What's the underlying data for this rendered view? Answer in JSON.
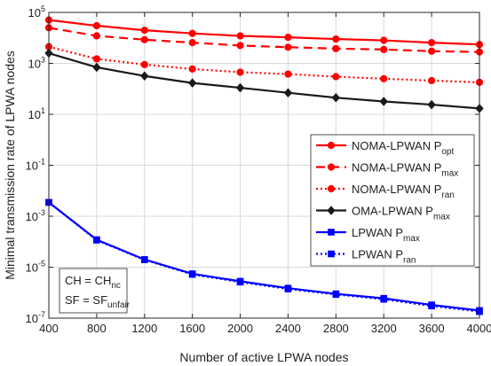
{
  "chart_data": {
    "type": "line",
    "xlabel": "Number of active LPWA nodes",
    "ylabel": "Minimal transmission rate of LPWA nodes",
    "x": [
      400,
      800,
      1200,
      1600,
      2000,
      2400,
      2800,
      3200,
      3600,
      4000
    ],
    "xlim": [
      400,
      4000
    ],
    "ylim": [
      1e-07,
      100000.0
    ],
    "yscale": "log",
    "grid": true,
    "legend_position": "right",
    "x_ticks": [
      "400",
      "800",
      "1200",
      "1600",
      "2000",
      "2400",
      "2800",
      "3200",
      "3600",
      "4000"
    ],
    "y_ticks": [
      {
        "value": 100000.0,
        "mantissa": "10",
        "exponent": "5"
      },
      {
        "value": 1000.0,
        "mantissa": "10",
        "exponent": "3"
      },
      {
        "value": 10,
        "mantissa": "10",
        "exponent": "1"
      },
      {
        "value": 0.1,
        "mantissa": "10",
        "exponent": "-1"
      },
      {
        "value": 0.001,
        "mantissa": "10",
        "exponent": "-3"
      },
      {
        "value": 1e-05,
        "mantissa": "10",
        "exponent": "-5"
      },
      {
        "value": 1e-07,
        "mantissa": "10",
        "exponent": "-7"
      }
    ],
    "series": [
      {
        "name": "NOMA-LPWAN P",
        "subscript": "opt",
        "color": "#ff0000",
        "dash": "solid",
        "marker": "circle",
        "values": [
          50000,
          30000,
          20000,
          15000,
          12000,
          10500,
          9000,
          8000,
          6500,
          5500
        ]
      },
      {
        "name": "NOMA-LPWAN P",
        "subscript": "max",
        "color": "#ff0000",
        "dash": "dashed",
        "marker": "circle",
        "values": [
          25000,
          12000,
          8500,
          6500,
          5000,
          4300,
          3800,
          3500,
          3000,
          2800
        ]
      },
      {
        "name": "NOMA-LPWAN P",
        "subscript": "ran",
        "color": "#ff0000",
        "dash": "dotted",
        "marker": "circle",
        "values": [
          4500,
          1500,
          900,
          600,
          450,
          380,
          300,
          250,
          210,
          180
        ]
      },
      {
        "name": "OMA-LPWAN P",
        "subscript": "max",
        "color": "#1a1a1a",
        "dash": "solid",
        "marker": "diamond",
        "values": [
          2500,
          700,
          320,
          170,
          110,
          70,
          45,
          32,
          24,
          17
        ]
      },
      {
        "name": "LPWAN P",
        "subscript": "max",
        "color": "#0000ff",
        "dash": "solid",
        "marker": "square",
        "values": [
          0.0035,
          0.00012,
          2e-05,
          5.5e-06,
          2.8e-06,
          1.5e-06,
          9e-07,
          6e-07,
          3.3e-07,
          2e-07
        ]
      },
      {
        "name": "LPWAN P",
        "subscript": "ran",
        "color": "#0000ff",
        "dash": "dotted",
        "marker": "square",
        "values": [
          0.0035,
          0.000115,
          1.95e-05,
          5.2e-06,
          2.6e-06,
          1.4e-06,
          8.5e-07,
          5.5e-07,
          3e-07,
          1.8e-07
        ]
      }
    ],
    "annotations": [
      {
        "main": "CH = CH",
        "subscript": "nc"
      },
      {
        "main": "SF = SF",
        "subscript": "unfair"
      }
    ]
  }
}
